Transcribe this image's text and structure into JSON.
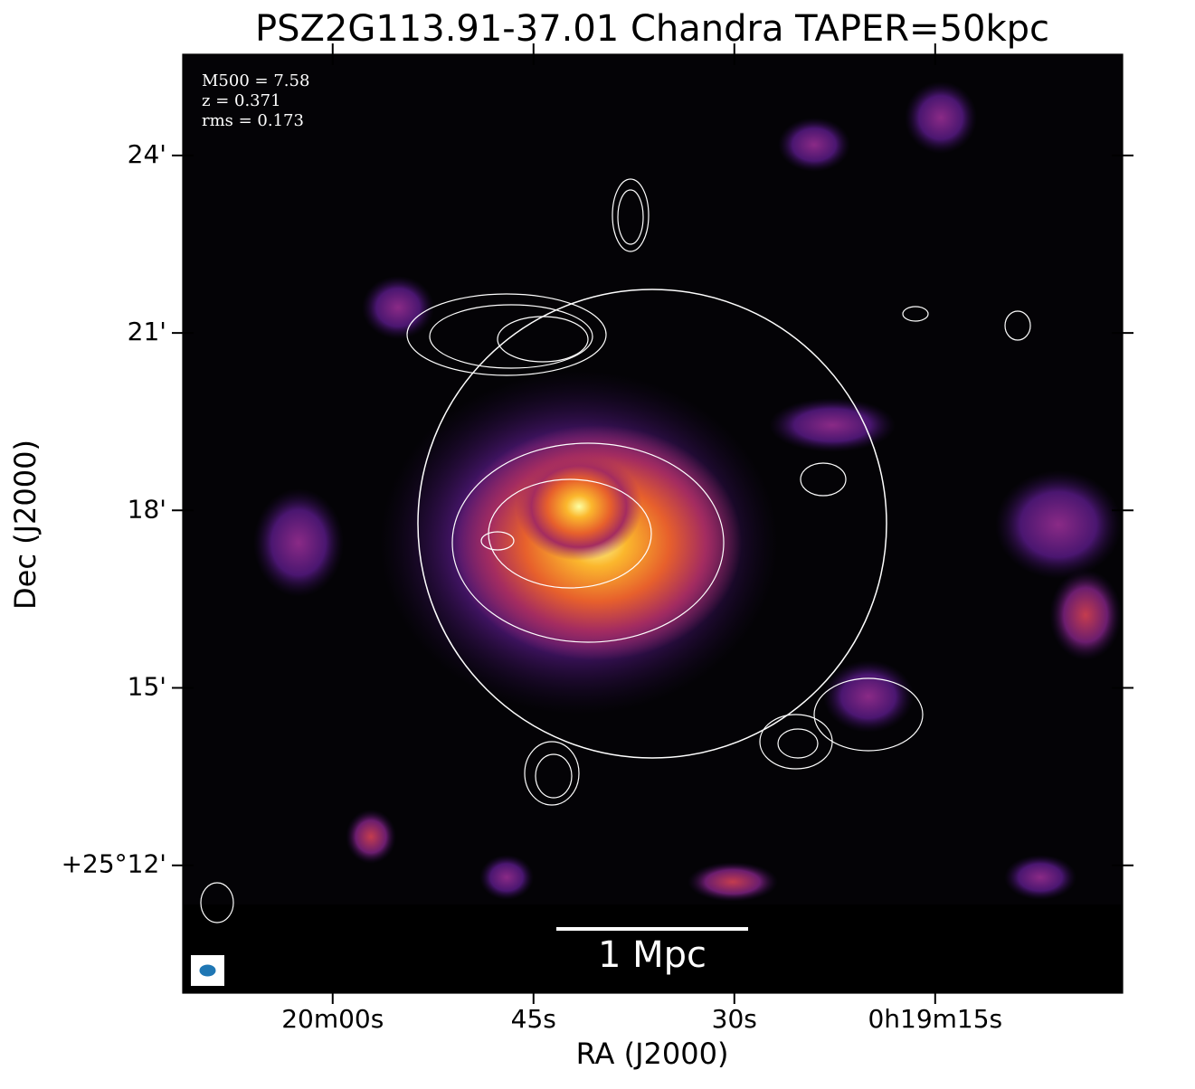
{
  "chart_data": {
    "type": "image",
    "title": "PSZ2G113.91-37.01 Chandra TAPER=50kpc",
    "xlabel": "RA (J2000)",
    "ylabel": "Dec (J2000)",
    "xlim": [
      1211.2,
      1141.0
    ],
    "ylim": [
      9.84,
      25.71
    ],
    "xticks": [
      {
        "value": 1200,
        "label": "20m00s"
      },
      {
        "value": 1185,
        "label": "45s"
      },
      {
        "value": 1170,
        "label": "30s"
      },
      {
        "value": 1155,
        "label": "0h19m15s"
      }
    ],
    "yticks": [
      {
        "value": 12,
        "label": "+25°12'"
      },
      {
        "value": 15,
        "label": "15'"
      },
      {
        "value": 18,
        "label": "18'"
      },
      {
        "value": 21,
        "label": "21'"
      },
      {
        "value": 24,
        "label": "24'"
      }
    ],
    "annotations": [
      "M500 = 7.58",
      "z = 0.371",
      "rms = 0.173"
    ],
    "scalebar_label": "1 Mpc"
  }
}
